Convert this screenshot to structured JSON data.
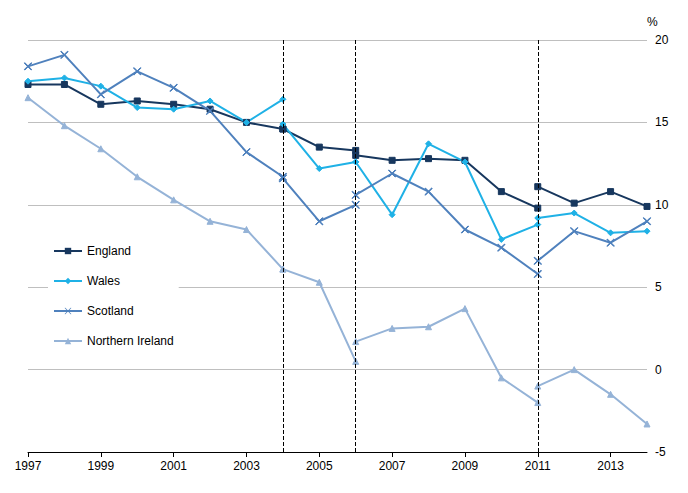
{
  "chart_data": {
    "type": "line",
    "y_label": "%",
    "x": [
      1997,
      1998,
      1999,
      2000,
      2001,
      2002,
      2003,
      2004,
      2004,
      2004,
      2005,
      2006,
      2006,
      2006,
      2007,
      2008,
      2009,
      2010,
      2011,
      2011,
      2011,
      2012,
      2013,
      2014
    ],
    "series": [
      {
        "name": "England",
        "color": "#17375e",
        "marker": "square",
        "values": [
          17.3,
          17.3,
          16.1,
          16.3,
          16.1,
          15.8,
          15.0,
          14.6,
          null,
          14.6,
          13.5,
          13.3,
          null,
          13.0,
          12.7,
          12.8,
          12.7,
          10.8,
          9.8,
          null,
          11.1,
          10.1,
          10.8,
          9.9
        ]
      },
      {
        "name": "Wales",
        "color": "#1fb1e6",
        "marker": "diamond",
        "values": [
          17.5,
          17.7,
          17.2,
          15.9,
          15.8,
          16.3,
          15.0,
          16.4,
          null,
          14.9,
          12.2,
          12.6,
          null,
          12.6,
          9.4,
          13.7,
          12.6,
          7.9,
          8.8,
          null,
          9.2,
          9.5,
          8.3,
          8.4
        ]
      },
      {
        "name": "Scotland",
        "color": "#4f81bd",
        "marker": "cross",
        "values": [
          18.4,
          19.1,
          16.7,
          18.1,
          17.1,
          15.7,
          13.2,
          11.7,
          null,
          11.6,
          9.0,
          10.0,
          null,
          10.6,
          11.9,
          10.8,
          8.5,
          7.4,
          5.8,
          null,
          6.6,
          8.4,
          7.7,
          9.0
        ]
      },
      {
        "name": "Northern Ireland",
        "color": "#95b3d7",
        "marker": "triangle",
        "values": [
          16.5,
          14.8,
          13.4,
          11.7,
          10.3,
          9.0,
          8.5,
          6.1,
          null,
          6.1,
          5.3,
          0.5,
          null,
          1.7,
          2.5,
          2.6,
          3.7,
          -0.5,
          -2.0,
          null,
          -1.0,
          0.0,
          -1.5,
          -3.3
        ]
      }
    ],
    "vlines": [
      2004,
      2006,
      2011
    ],
    "xlim": [
      1997,
      2014
    ],
    "xticks": [
      1997,
      1999,
      2001,
      2003,
      2005,
      2007,
      2009,
      2011,
      2013
    ],
    "ylim": [
      -5,
      20
    ],
    "yticks": [
      -5,
      0,
      5,
      10,
      15,
      20
    ],
    "grid": true,
    "legend": "left"
  }
}
